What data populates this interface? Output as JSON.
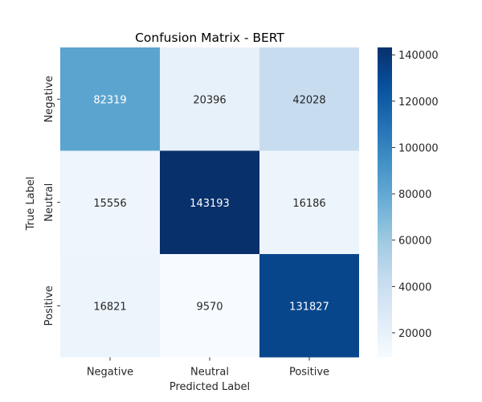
{
  "chart_data": {
    "type": "heatmap",
    "title": "Confusion Matrix - BERT",
    "xlabel": "Predicted Label",
    "ylabel": "True Label",
    "x_categories": [
      "Negative",
      "Neutral",
      "Positive"
    ],
    "y_categories": [
      "Negative",
      "Neutral",
      "Positive"
    ],
    "values": [
      [
        82319,
        20396,
        42028
      ],
      [
        15556,
        143193,
        16186
      ],
      [
        16821,
        9570,
        131827
      ]
    ],
    "colormap": "Blues",
    "colorbar": {
      "min": 9570,
      "max": 143193,
      "ticks": [
        20000,
        40000,
        60000,
        80000,
        100000,
        120000,
        140000
      ],
      "tick_labels": [
        "20000",
        "40000",
        "60000",
        "80000",
        "100000",
        "120000",
        "140000"
      ]
    }
  }
}
